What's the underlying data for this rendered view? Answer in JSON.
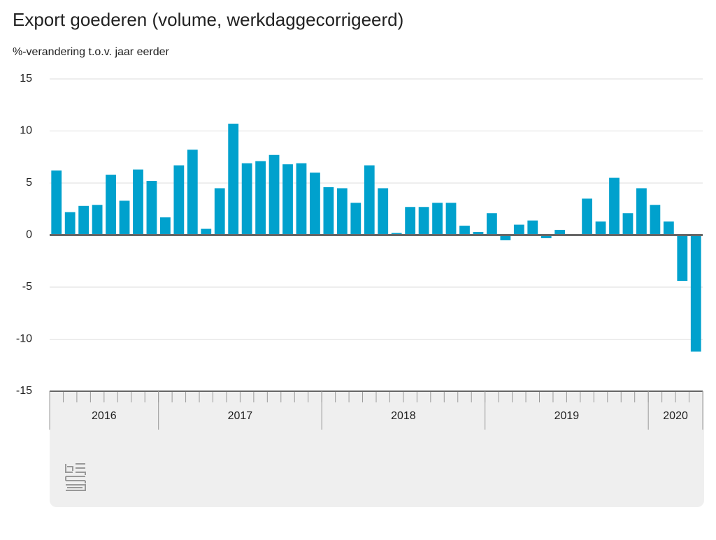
{
  "chart_data": {
    "type": "bar",
    "title": "Export goederen (volume, werkdaggecorrigeerd)",
    "subtitle": "%-verandering t.o.v. jaar eerder",
    "categories": [
      null,
      null,
      null,
      null,
      null,
      null,
      null,
      null,
      null,
      null,
      null,
      null,
      null,
      null,
      null,
      null,
      null,
      null,
      null,
      null,
      null,
      null,
      null,
      null,
      null,
      null,
      null,
      null,
      null,
      null,
      null,
      null,
      null,
      null,
      null,
      null,
      null,
      null,
      null,
      null,
      null,
      null,
      null,
      null,
      null,
      null,
      null,
      null
    ],
    "values": [
      6.2,
      2.2,
      2.8,
      2.9,
      5.8,
      3.3,
      6.3,
      5.2,
      1.7,
      6.7,
      8.2,
      0.6,
      4.5,
      10.7,
      6.9,
      7.1,
      7.7,
      6.8,
      6.9,
      6.0,
      4.6,
      4.5,
      3.1,
      6.7,
      4.5,
      0.2,
      2.7,
      2.7,
      3.1,
      3.1,
      0.9,
      0.3,
      2.1,
      -0.5,
      1.0,
      1.4,
      -0.3,
      0.5,
      0,
      3.5,
      1.3,
      5.5,
      2.1,
      4.5,
      2.9,
      1.3,
      -4.4,
      -11.2
    ],
    "color": "#00a1cd",
    "years": [
      "2016",
      "2017",
      "2018",
      "2019",
      "2020"
    ],
    "year_months": [
      8,
      12,
      12,
      12,
      4
    ],
    "ylim": [
      -15,
      15
    ],
    "yticks": [
      -15,
      -10,
      -5,
      0,
      5,
      10,
      15
    ],
    "grid": true
  }
}
